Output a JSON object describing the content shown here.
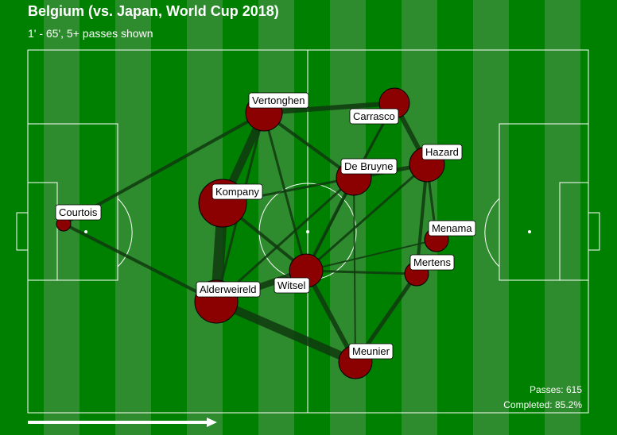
{
  "title": "Belgium (vs. Japan, World Cup 2018)",
  "subtitle": "1' - 65', 5+ passes shown",
  "stats": {
    "passes": "Passes: 615",
    "completed": "Completed: 85.2%"
  },
  "colors": {
    "pitch": "#008000",
    "stripe_light": "#2e8b2e",
    "line": "#ffffff",
    "node": "#8b0000",
    "edge": "#0f3a0f"
  },
  "players": [
    {
      "id": "courtois",
      "name": "Courtois"
    },
    {
      "id": "vertonghen",
      "name": "Vertonghen"
    },
    {
      "id": "kompany",
      "name": "Kompany"
    },
    {
      "id": "alderweireld",
      "name": "Alderweireld"
    },
    {
      "id": "witsel",
      "name": "Witsel"
    },
    {
      "id": "carrasco",
      "name": "Carrasco"
    },
    {
      "id": "debruyne",
      "name": "De Bruyne"
    },
    {
      "id": "hazard",
      "name": "Hazard"
    },
    {
      "id": "menama",
      "name": "Menama"
    },
    {
      "id": "mertens",
      "name": "Mertens"
    },
    {
      "id": "meunier",
      "name": "Meunier"
    }
  ]
}
